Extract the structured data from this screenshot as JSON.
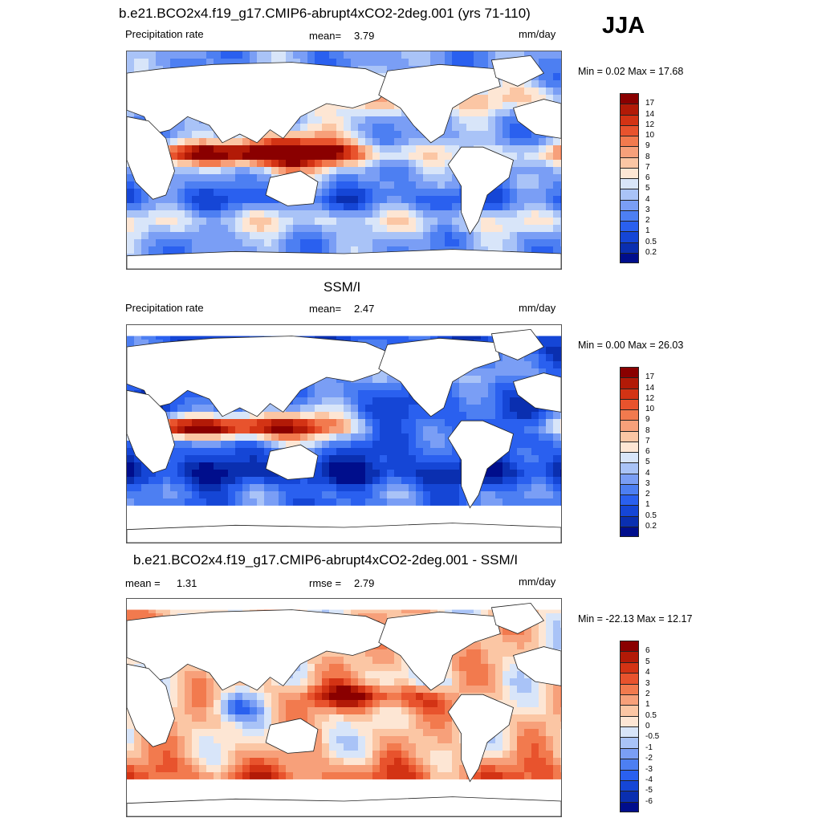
{
  "season": "JJA",
  "colors": {
    "land": "#ffffff",
    "coast": "#222222",
    "precip": [
      "#000e8c",
      "#0a2fb0",
      "#1546d6",
      "#2a60ef",
      "#4d7ff2",
      "#7a9ef5",
      "#a9c3f7",
      "#d8e5f9",
      "#fde6d4",
      "#fbc6a4",
      "#f7a07a",
      "#f27a4e",
      "#e8532d",
      "#d33314",
      "#b21a07",
      "#8a0000"
    ],
    "diff": [
      "#000e8c",
      "#0a2fb0",
      "#1546d6",
      "#2a60ef",
      "#4d7ff2",
      "#7a9ef5",
      "#a9c3f7",
      "#d8e5f9",
      "#fde6d4",
      "#fbc6a4",
      "#f7a07a",
      "#f27a4e",
      "#e8532d",
      "#d33314",
      "#b21a07",
      "#8a0000"
    ]
  },
  "panels": [
    {
      "title": "b.e21.BCO2x4.f19_g17.CMIP6-abrupt4xCO2-2deg.001 (yrs 71-110)",
      "left_label": "Precipitation rate",
      "mean_label": "mean=",
      "mean_value": "3.79",
      "units": "mm/day",
      "minmax": "Min =   0.02 Max =  17.68",
      "levels": [
        "0.2",
        "0.5",
        "1",
        "2",
        "3",
        "4",
        "5",
        "6",
        "7",
        "8",
        "9",
        "10",
        "12",
        "14",
        "17"
      ],
      "field": "model"
    },
    {
      "title": "SSM/I",
      "left_label": "Precipitation rate",
      "mean_label": "mean=",
      "mean_value": "2.47",
      "units": "mm/day",
      "minmax": "Min =   0.00 Max =  26.03",
      "levels": [
        "0.2",
        "0.5",
        "1",
        "2",
        "3",
        "4",
        "5",
        "6",
        "7",
        "8",
        "9",
        "10",
        "12",
        "14",
        "17"
      ],
      "field": "obs"
    },
    {
      "title": "b.e21.BCO2x4.f19_g17.CMIP6-abrupt4xCO2-2deg.001 - SSM/I",
      "left_label": "mean =",
      "left_value": "1.31",
      "mean_label": "rmse =",
      "mean_value": "2.79",
      "units": "mm/day",
      "minmax": "Min = -22.13 Max =  12.17",
      "levels": [
        "-6",
        "-5",
        "-4",
        "-3",
        "-2",
        "-1",
        "-0.5",
        "0",
        "0.5",
        "1",
        "2",
        "3",
        "4",
        "5",
        "6"
      ],
      "field": "diff"
    }
  ]
}
